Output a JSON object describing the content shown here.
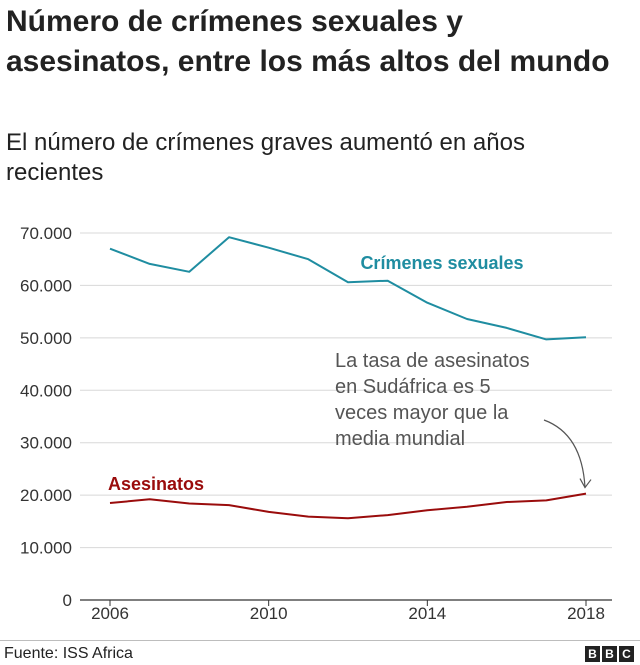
{
  "title": "Número de crímenes sexuales y asesinatos, entre los más altos del mundo",
  "subtitle": "El número de crímenes graves aumentó en años recientes",
  "source": "Fuente: ISS Africa",
  "logo": [
    "B",
    "B",
    "C"
  ],
  "colors": {
    "sexual": "#1f8da1",
    "murder": "#9a0c0c",
    "grid": "#d8d8d8",
    "axis": "#333333",
    "annotation": "#555555"
  },
  "chart_data": {
    "type": "line",
    "x": [
      2006,
      2007,
      2008,
      2009,
      2010,
      2011,
      2012,
      2013,
      2014,
      2015,
      2016,
      2017,
      2018
    ],
    "xticks": [
      2006,
      2010,
      2014,
      2018
    ],
    "xtick_labels": [
      "2006",
      "2010",
      "2014",
      "2018"
    ],
    "ylim": [
      0,
      70000
    ],
    "yticks": [
      0,
      10000,
      20000,
      30000,
      40000,
      50000,
      60000,
      70000
    ],
    "ytick_labels": [
      "0",
      "10.000",
      "20.000",
      "30.000",
      "40.000",
      "50.000",
      "60.000",
      "70.000"
    ],
    "grid": true,
    "series": [
      {
        "name": "Crímenes sexuales",
        "color": "#1f8da1",
        "values": [
          67000,
          64100,
          62600,
          69200,
          67200,
          65000,
          60600,
          60900,
          56700,
          53600,
          51900,
          49700,
          50100
        ]
      },
      {
        "name": "Asesinatos",
        "color": "#9a0c0c",
        "values": [
          18500,
          19200,
          18400,
          18100,
          16800,
          15900,
          15600,
          16200,
          17100,
          17800,
          18700,
          19000,
          20300
        ]
      }
    ],
    "annotation": {
      "lines": [
        "La tasa de asesinatos",
        "en Sudáfrica es 5",
        "veces mayor que la",
        "media mundial"
      ],
      "target_x": 2018,
      "target_series": "Asesinatos"
    }
  }
}
